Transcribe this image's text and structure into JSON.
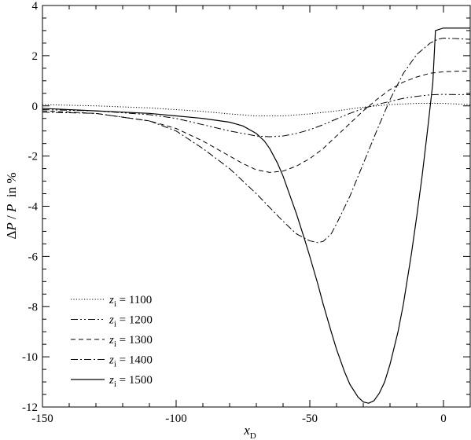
{
  "chart_data": {
    "type": "line",
    "title": "",
    "xlabel": {
      "symbol": "x",
      "subscript": "D"
    },
    "ylabel": {
      "prefix": "Δ",
      "numerator": "P",
      "slash": " / ",
      "denominator": "P",
      "suffix": "  in %"
    },
    "xlim": [
      -150,
      10
    ],
    "ylim": [
      -12,
      4
    ],
    "x_ticks": [
      -150,
      -100,
      -50,
      0
    ],
    "x_tick_labels": [
      "-150",
      "-100",
      "-50",
      "0"
    ],
    "y_ticks": [
      -12,
      -10,
      -8,
      -6,
      -4,
      -2,
      0,
      2,
      4
    ],
    "y_tick_labels": [
      "-12",
      "-10",
      "-8",
      "-6",
      "-4",
      "-2",
      "0",
      "2",
      "4"
    ],
    "x_minor_step": 10,
    "y_minor_step": 0.5,
    "grid": false,
    "legend_position": "bottom-left",
    "series": [
      {
        "name": "z_i = 1100",
        "legend": {
          "symbol": "z",
          "subscript": "i",
          "text": " = 1100"
        },
        "dash": "1.2,2.2",
        "x": [
          -150,
          -130,
          -110,
          -90,
          -80,
          -70,
          -60,
          -50,
          -40,
          -30,
          -20,
          -10,
          0,
          10
        ],
        "y": [
          0.05,
          0.0,
          -0.08,
          -0.22,
          -0.32,
          -0.4,
          -0.4,
          -0.32,
          -0.2,
          -0.05,
          0.05,
          0.1,
          0.1,
          0.05
        ]
      },
      {
        "name": "z_i = 1200",
        "legend": {
          "symbol": "z",
          "subscript": "i",
          "text": " = 1200"
        },
        "dash": "9,3,2,3,2,3",
        "x": [
          -150,
          -130,
          -110,
          -100,
          -90,
          -80,
          -70,
          -65,
          -60,
          -55,
          -50,
          -45,
          -40,
          -35,
          -30,
          -25,
          -20,
          -15,
          -10,
          -5,
          0,
          5,
          10
        ],
        "y": [
          -0.15,
          -0.2,
          -0.35,
          -0.5,
          -0.75,
          -1.0,
          -1.2,
          -1.23,
          -1.2,
          -1.1,
          -0.95,
          -0.75,
          -0.52,
          -0.3,
          -0.1,
          0.05,
          0.18,
          0.3,
          0.38,
          0.44,
          0.46,
          0.45,
          0.45
        ]
      },
      {
        "name": "z_i = 1300",
        "legend": {
          "symbol": "z",
          "subscript": "i",
          "text": " = 1300"
        },
        "dash": "6,4",
        "x": [
          -150,
          -130,
          -110,
          -100,
          -90,
          -80,
          -75,
          -70,
          -65,
          -60,
          -55,
          -50,
          -45,
          -40,
          -35,
          -30,
          -25,
          -20,
          -15,
          -10,
          -5,
          0,
          5,
          10
        ],
        "y": [
          -0.2,
          -0.3,
          -0.6,
          -0.9,
          -1.4,
          -2.0,
          -2.3,
          -2.55,
          -2.65,
          -2.6,
          -2.4,
          -2.1,
          -1.7,
          -1.2,
          -0.7,
          -0.2,
          0.25,
          0.65,
          0.95,
          1.15,
          1.3,
          1.36,
          1.38,
          1.38
        ]
      },
      {
        "name": "z_i = 1400",
        "legend": {
          "symbol": "z",
          "subscript": "i",
          "text": " = 1400"
        },
        "dash": "9,3,2,3",
        "x": [
          -150,
          -130,
          -110,
          -100,
          -90,
          -80,
          -70,
          -60,
          -55,
          -50,
          -47,
          -45,
          -42,
          -40,
          -35,
          -30,
          -25,
          -20,
          -15,
          -10,
          -5,
          -2,
          0,
          5,
          10
        ],
        "y": [
          -0.25,
          -0.3,
          -0.6,
          -1.0,
          -1.7,
          -2.5,
          -3.5,
          -4.6,
          -5.1,
          -5.38,
          -5.45,
          -5.4,
          -5.1,
          -4.7,
          -3.6,
          -2.3,
          -1.0,
          0.25,
          1.3,
          2.05,
          2.5,
          2.66,
          2.7,
          2.68,
          2.65
        ]
      },
      {
        "name": "z_i = 1500",
        "legend": {
          "symbol": "z",
          "subscript": "i",
          "text": " = 1500"
        },
        "dash": "",
        "x": [
          -150,
          -130,
          -110,
          -100,
          -90,
          -80,
          -75,
          -70,
          -67,
          -65,
          -62,
          -60,
          -57,
          -55,
          -52,
          -50,
          -47,
          -45,
          -42,
          -40,
          -37,
          -35,
          -32,
          -30,
          -28,
          -26,
          -24,
          -22,
          -20,
          -17,
          -15,
          -12,
          -10,
          -8,
          -6,
          -4,
          -3,
          0,
          5,
          10
        ],
        "y": [
          -0.1,
          -0.2,
          -0.3,
          -0.4,
          -0.5,
          -0.65,
          -0.8,
          -1.1,
          -1.4,
          -1.7,
          -2.3,
          -2.8,
          -3.7,
          -4.3,
          -5.3,
          -6.0,
          -7.1,
          -7.9,
          -9.0,
          -9.7,
          -10.6,
          -11.1,
          -11.6,
          -11.8,
          -11.85,
          -11.75,
          -11.45,
          -11.0,
          -10.3,
          -9.0,
          -7.9,
          -5.9,
          -4.4,
          -2.8,
          -1.0,
          0.9,
          3.0,
          3.1,
          3.1,
          3.1
        ]
      }
    ]
  }
}
